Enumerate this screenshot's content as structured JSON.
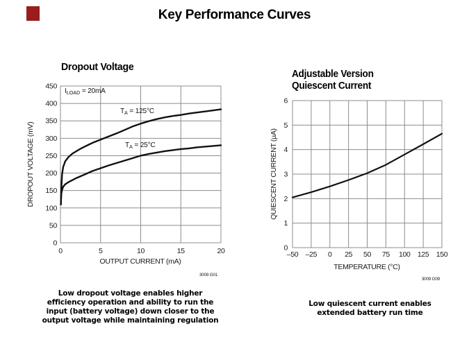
{
  "header": {
    "title": "Key Performance Curves"
  },
  "colors": {
    "background": "#ffffff",
    "text": "#000000",
    "grid": "#8c8c8c",
    "curve": "#111111",
    "red_marker": "#9b1c1c",
    "code_text": "#333333"
  },
  "captions": {
    "left": "Low dropout voltage enables higher\nefficiency operation and ability to run the\ninput (battery voltage) down closer to the\noutput voltage while maintaining regulation",
    "right": "Low quiescent current enables\nextended battery run time"
  },
  "chart_data": [
    {
      "type": "line",
      "title": "Dropout Voltage",
      "xlabel": "OUTPUT CURRENT (mA)",
      "ylabel": "DROPOUT VOLTAGE (mV)",
      "code": "3009 G01",
      "grid": true,
      "legend_position": "inline-labels",
      "xlim": [
        0,
        20
      ],
      "ylim": [
        0,
        450
      ],
      "x_ticks": [
        0,
        5,
        10,
        15,
        20
      ],
      "x_tick_labels": [
        "0",
        "5",
        "10",
        "15",
        "20"
      ],
      "y_ticks": [
        0,
        50,
        100,
        150,
        200,
        250,
        300,
        350,
        400,
        450
      ],
      "y_tick_labels": [
        "0",
        "50",
        "100",
        "150",
        "200",
        "250",
        "300",
        "350",
        "400",
        "450"
      ],
      "annotation": {
        "pre": "I",
        "sub": "LOAD",
        "post": " = 20mA"
      },
      "series": [
        {
          "name": "TA = 125°C",
          "label_pre": "T",
          "label_sub": "A",
          "label_post": " = 125°C",
          "points": [
            [
              0.05,
              110
            ],
            [
              0.1,
              152
            ],
            [
              0.2,
              196
            ],
            [
              0.35,
              218
            ],
            [
              0.6,
              234
            ],
            [
              1,
              246
            ],
            [
              1.5,
              256
            ],
            [
              2,
              263
            ],
            [
              2.5,
              270
            ],
            [
              3,
              276
            ],
            [
              4,
              287
            ],
            [
              5,
              296
            ],
            [
              6,
              305
            ],
            [
              7,
              314
            ],
            [
              8,
              324
            ],
            [
              9,
              334
            ],
            [
              10,
              342
            ],
            [
              11,
              349
            ],
            [
              12,
              355
            ],
            [
              13,
              360
            ],
            [
              14,
              364
            ],
            [
              15,
              367
            ],
            [
              16,
              371
            ],
            [
              17,
              374
            ],
            [
              18,
              377
            ],
            [
              19,
              380
            ],
            [
              20,
              383
            ]
          ]
        },
        {
          "name": "TA = 25°C",
          "label_pre": "T",
          "label_sub": "A",
          "label_post": " = 25°C",
          "points": [
            [
              0.05,
              110
            ],
            [
              0.1,
              140
            ],
            [
              0.2,
              152
            ],
            [
              0.35,
              161
            ],
            [
              0.6,
              168
            ],
            [
              1,
              174
            ],
            [
              1.5,
              180
            ],
            [
              2,
              186
            ],
            [
              2.5,
              191
            ],
            [
              3,
              196
            ],
            [
              4,
              206
            ],
            [
              5,
              214
            ],
            [
              6,
              222
            ],
            [
              7,
              229
            ],
            [
              8,
              236
            ],
            [
              9,
              243
            ],
            [
              10,
              250
            ],
            [
              11,
              255
            ],
            [
              12,
              259
            ],
            [
              13,
              263
            ],
            [
              14,
              266
            ],
            [
              15,
              269
            ],
            [
              16,
              271
            ],
            [
              17,
              274
            ],
            [
              18,
              276
            ],
            [
              19,
              278
            ],
            [
              20,
              280
            ]
          ]
        }
      ]
    },
    {
      "type": "line",
      "title_line1": "Adjustable Version",
      "title_line2": "Quiescent Current",
      "xlabel": "TEMPERATURE (°C)",
      "ylabel": "QUIESCENT CURRENT (µA)",
      "code": "3009 G09",
      "grid": true,
      "xlim": [
        -50,
        150
      ],
      "ylim": [
        0,
        6
      ],
      "x_ticks": [
        -50,
        -25,
        0,
        25,
        50,
        75,
        100,
        125,
        150
      ],
      "x_tick_labels": [
        "–50",
        "–25",
        "0",
        "25",
        "50",
        "75",
        "100",
        "125",
        "150"
      ],
      "y_ticks": [
        0,
        1,
        2,
        3,
        4,
        5,
        6
      ],
      "y_tick_labels": [
        "0",
        "1",
        "2",
        "3",
        "4",
        "5",
        "6"
      ],
      "series": [
        {
          "name": "quiescent current",
          "points": [
            [
              -50,
              2.05
            ],
            [
              -25,
              2.26
            ],
            [
              0,
              2.5
            ],
            [
              25,
              2.76
            ],
            [
              50,
              3.04
            ],
            [
              75,
              3.38
            ],
            [
              100,
              3.8
            ],
            [
              125,
              4.22
            ],
            [
              150,
              4.65
            ]
          ]
        }
      ]
    }
  ]
}
